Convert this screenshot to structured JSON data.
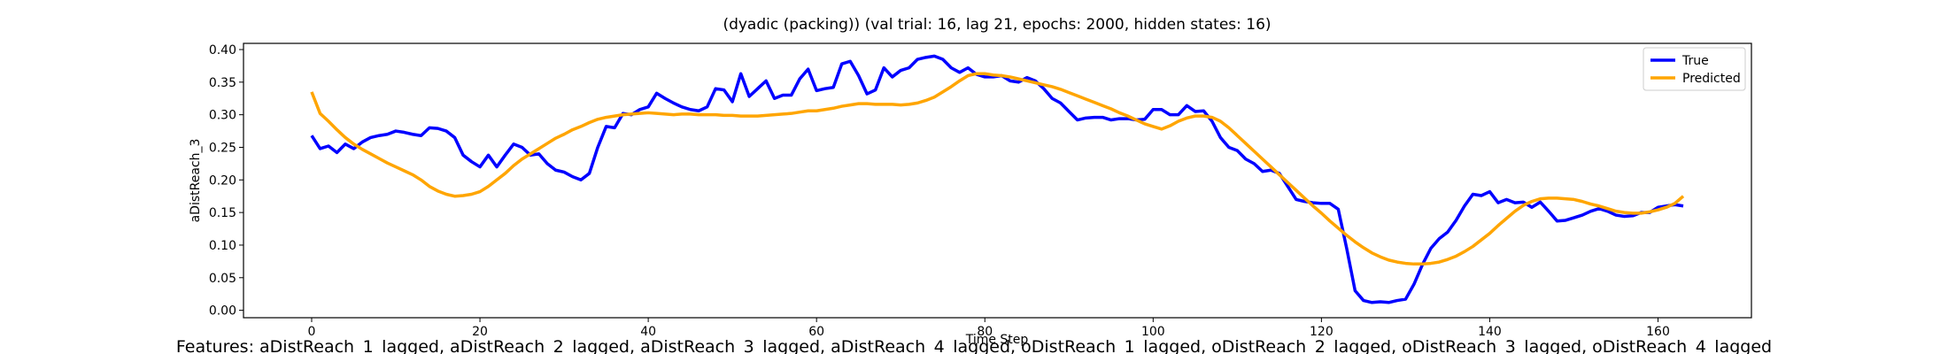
{
  "chart_data": {
    "type": "line",
    "title": "(dyadic (packing)) (val trial: 16, lag 21, epochs: 2000, hidden states: 16)",
    "x_label": "Time Step",
    "y_label": "aDistReach_3",
    "footer": "Features: aDistReach_1_lagged, aDistReach_2_lagged, aDistReach_3_lagged, aDistReach_4_lagged, oDistReach_1_lagged, oDistReach_2_lagged, oDistReach_3_lagged, oDistReach_4_lagged",
    "x": [
      0,
      1,
      2,
      3,
      4,
      5,
      6,
      7,
      8,
      9,
      10,
      11,
      12,
      13,
      14,
      15,
      16,
      17,
      18,
      19,
      20,
      21,
      22,
      23,
      24,
      25,
      26,
      27,
      28,
      29,
      30,
      31,
      32,
      33,
      34,
      35,
      36,
      37,
      38,
      39,
      40,
      41,
      42,
      43,
      44,
      45,
      46,
      47,
      48,
      49,
      50,
      51,
      52,
      53,
      54,
      55,
      56,
      57,
      58,
      59,
      60,
      61,
      62,
      63,
      64,
      65,
      66,
      67,
      68,
      69,
      70,
      71,
      72,
      73,
      74,
      75,
      76,
      77,
      78,
      79,
      80,
      81,
      82,
      83,
      84,
      85,
      86,
      87,
      88,
      89,
      90,
      91,
      92,
      93,
      94,
      95,
      96,
      97,
      98,
      99,
      100,
      101,
      102,
      103,
      104,
      105,
      106,
      107,
      108,
      109,
      110,
      111,
      112,
      113,
      114,
      115,
      116,
      117,
      118,
      119,
      120,
      121,
      122,
      123,
      124,
      125,
      126,
      127,
      128,
      129,
      130,
      131,
      132,
      133,
      134,
      135,
      136,
      137,
      138,
      139,
      140,
      141,
      142,
      143,
      144,
      145,
      146,
      147,
      148,
      149,
      150,
      151,
      152,
      153,
      154,
      155,
      156,
      157,
      158,
      159,
      160,
      161,
      162,
      163
    ],
    "series": [
      {
        "name": "True",
        "color": "#0000ff",
        "values": [
          0.268,
          0.248,
          0.252,
          0.242,
          0.255,
          0.248,
          0.258,
          0.265,
          0.268,
          0.27,
          0.275,
          0.273,
          0.27,
          0.268,
          0.28,
          0.279,
          0.275,
          0.265,
          0.238,
          0.228,
          0.22,
          0.238,
          0.22,
          0.238,
          0.255,
          0.25,
          0.238,
          0.24,
          0.225,
          0.215,
          0.212,
          0.205,
          0.2,
          0.21,
          0.25,
          0.282,
          0.28,
          0.302,
          0.3,
          0.308,
          0.312,
          0.333,
          0.325,
          0.318,
          0.312,
          0.308,
          0.306,
          0.312,
          0.34,
          0.338,
          0.32,
          0.363,
          0.328,
          0.34,
          0.352,
          0.325,
          0.33,
          0.33,
          0.355,
          0.37,
          0.337,
          0.34,
          0.342,
          0.378,
          0.382,
          0.36,
          0.332,
          0.338,
          0.372,
          0.358,
          0.368,
          0.372,
          0.385,
          0.388,
          0.39,
          0.385,
          0.372,
          0.365,
          0.372,
          0.362,
          0.358,
          0.358,
          0.36,
          0.352,
          0.35,
          0.357,
          0.352,
          0.34,
          0.325,
          0.318,
          0.305,
          0.292,
          0.295,
          0.296,
          0.296,
          0.292,
          0.294,
          0.294,
          0.292,
          0.293,
          0.308,
          0.308,
          0.3,
          0.3,
          0.314,
          0.305,
          0.306,
          0.29,
          0.265,
          0.25,
          0.245,
          0.232,
          0.225,
          0.213,
          0.215,
          0.21,
          0.19,
          0.17,
          0.167,
          0.165,
          0.164,
          0.164,
          0.155,
          0.095,
          0.03,
          0.015,
          0.012,
          0.013,
          0.012,
          0.015,
          0.017,
          0.04,
          0.07,
          0.095,
          0.11,
          0.12,
          0.138,
          0.16,
          0.178,
          0.176,
          0.182,
          0.165,
          0.17,
          0.165,
          0.166,
          0.158,
          0.166,
          0.152,
          0.137,
          0.138,
          0.142,
          0.146,
          0.152,
          0.156,
          0.152,
          0.146,
          0.144,
          0.145,
          0.15,
          0.15,
          0.158,
          0.16,
          0.162,
          0.16
        ]
      },
      {
        "name": "Predicted",
        "color": "#ffa500",
        "values": [
          0.335,
          0.302,
          0.29,
          0.277,
          0.265,
          0.255,
          0.247,
          0.24,
          0.233,
          0.226,
          0.22,
          0.214,
          0.208,
          0.2,
          0.19,
          0.183,
          0.178,
          0.175,
          0.176,
          0.178,
          0.182,
          0.19,
          0.2,
          0.21,
          0.222,
          0.232,
          0.24,
          0.248,
          0.256,
          0.264,
          0.27,
          0.277,
          0.282,
          0.288,
          0.293,
          0.296,
          0.298,
          0.3,
          0.301,
          0.302,
          0.303,
          0.302,
          0.301,
          0.3,
          0.301,
          0.301,
          0.3,
          0.3,
          0.3,
          0.299,
          0.299,
          0.298,
          0.298,
          0.298,
          0.299,
          0.3,
          0.301,
          0.302,
          0.304,
          0.306,
          0.306,
          0.308,
          0.31,
          0.313,
          0.315,
          0.317,
          0.317,
          0.316,
          0.316,
          0.316,
          0.315,
          0.316,
          0.318,
          0.322,
          0.327,
          0.335,
          0.343,
          0.352,
          0.36,
          0.363,
          0.363,
          0.361,
          0.36,
          0.358,
          0.355,
          0.352,
          0.349,
          0.346,
          0.343,
          0.339,
          0.334,
          0.329,
          0.324,
          0.319,
          0.314,
          0.309,
          0.303,
          0.298,
          0.292,
          0.286,
          0.282,
          0.278,
          0.283,
          0.29,
          0.295,
          0.298,
          0.298,
          0.296,
          0.29,
          0.28,
          0.268,
          0.256,
          0.244,
          0.232,
          0.22,
          0.208,
          0.196,
          0.184,
          0.172,
          0.16,
          0.149,
          0.137,
          0.126,
          0.115,
          0.105,
          0.096,
          0.088,
          0.082,
          0.077,
          0.074,
          0.072,
          0.071,
          0.071,
          0.072,
          0.074,
          0.078,
          0.083,
          0.09,
          0.098,
          0.108,
          0.118,
          0.13,
          0.141,
          0.152,
          0.161,
          0.167,
          0.171,
          0.172,
          0.172,
          0.171,
          0.17,
          0.167,
          0.163,
          0.16,
          0.156,
          0.152,
          0.15,
          0.149,
          0.149,
          0.151,
          0.154,
          0.158,
          0.164,
          0.175
        ]
      }
    ],
    "xlim": [
      -8.1,
      171.1
    ],
    "ylim": [
      -0.0114,
      0.4095
    ],
    "xticks": [
      0,
      20,
      40,
      60,
      80,
      100,
      120,
      140,
      160
    ],
    "yticks": [
      {
        "value": 0,
        "label": "0.00"
      },
      {
        "value": 0.05,
        "label": "0.05"
      },
      {
        "value": 0.1,
        "label": "0.10"
      },
      {
        "value": 0.15,
        "label": "0.15"
      },
      {
        "value": 0.2,
        "label": "0.20"
      },
      {
        "value": 0.25,
        "label": "0.25"
      },
      {
        "value": 0.3,
        "label": "0.30"
      },
      {
        "value": 0.35,
        "label": "0.35"
      },
      {
        "value": 0.4,
        "label": "0.40"
      }
    ],
    "legend": "upper right",
    "grid": false
  }
}
